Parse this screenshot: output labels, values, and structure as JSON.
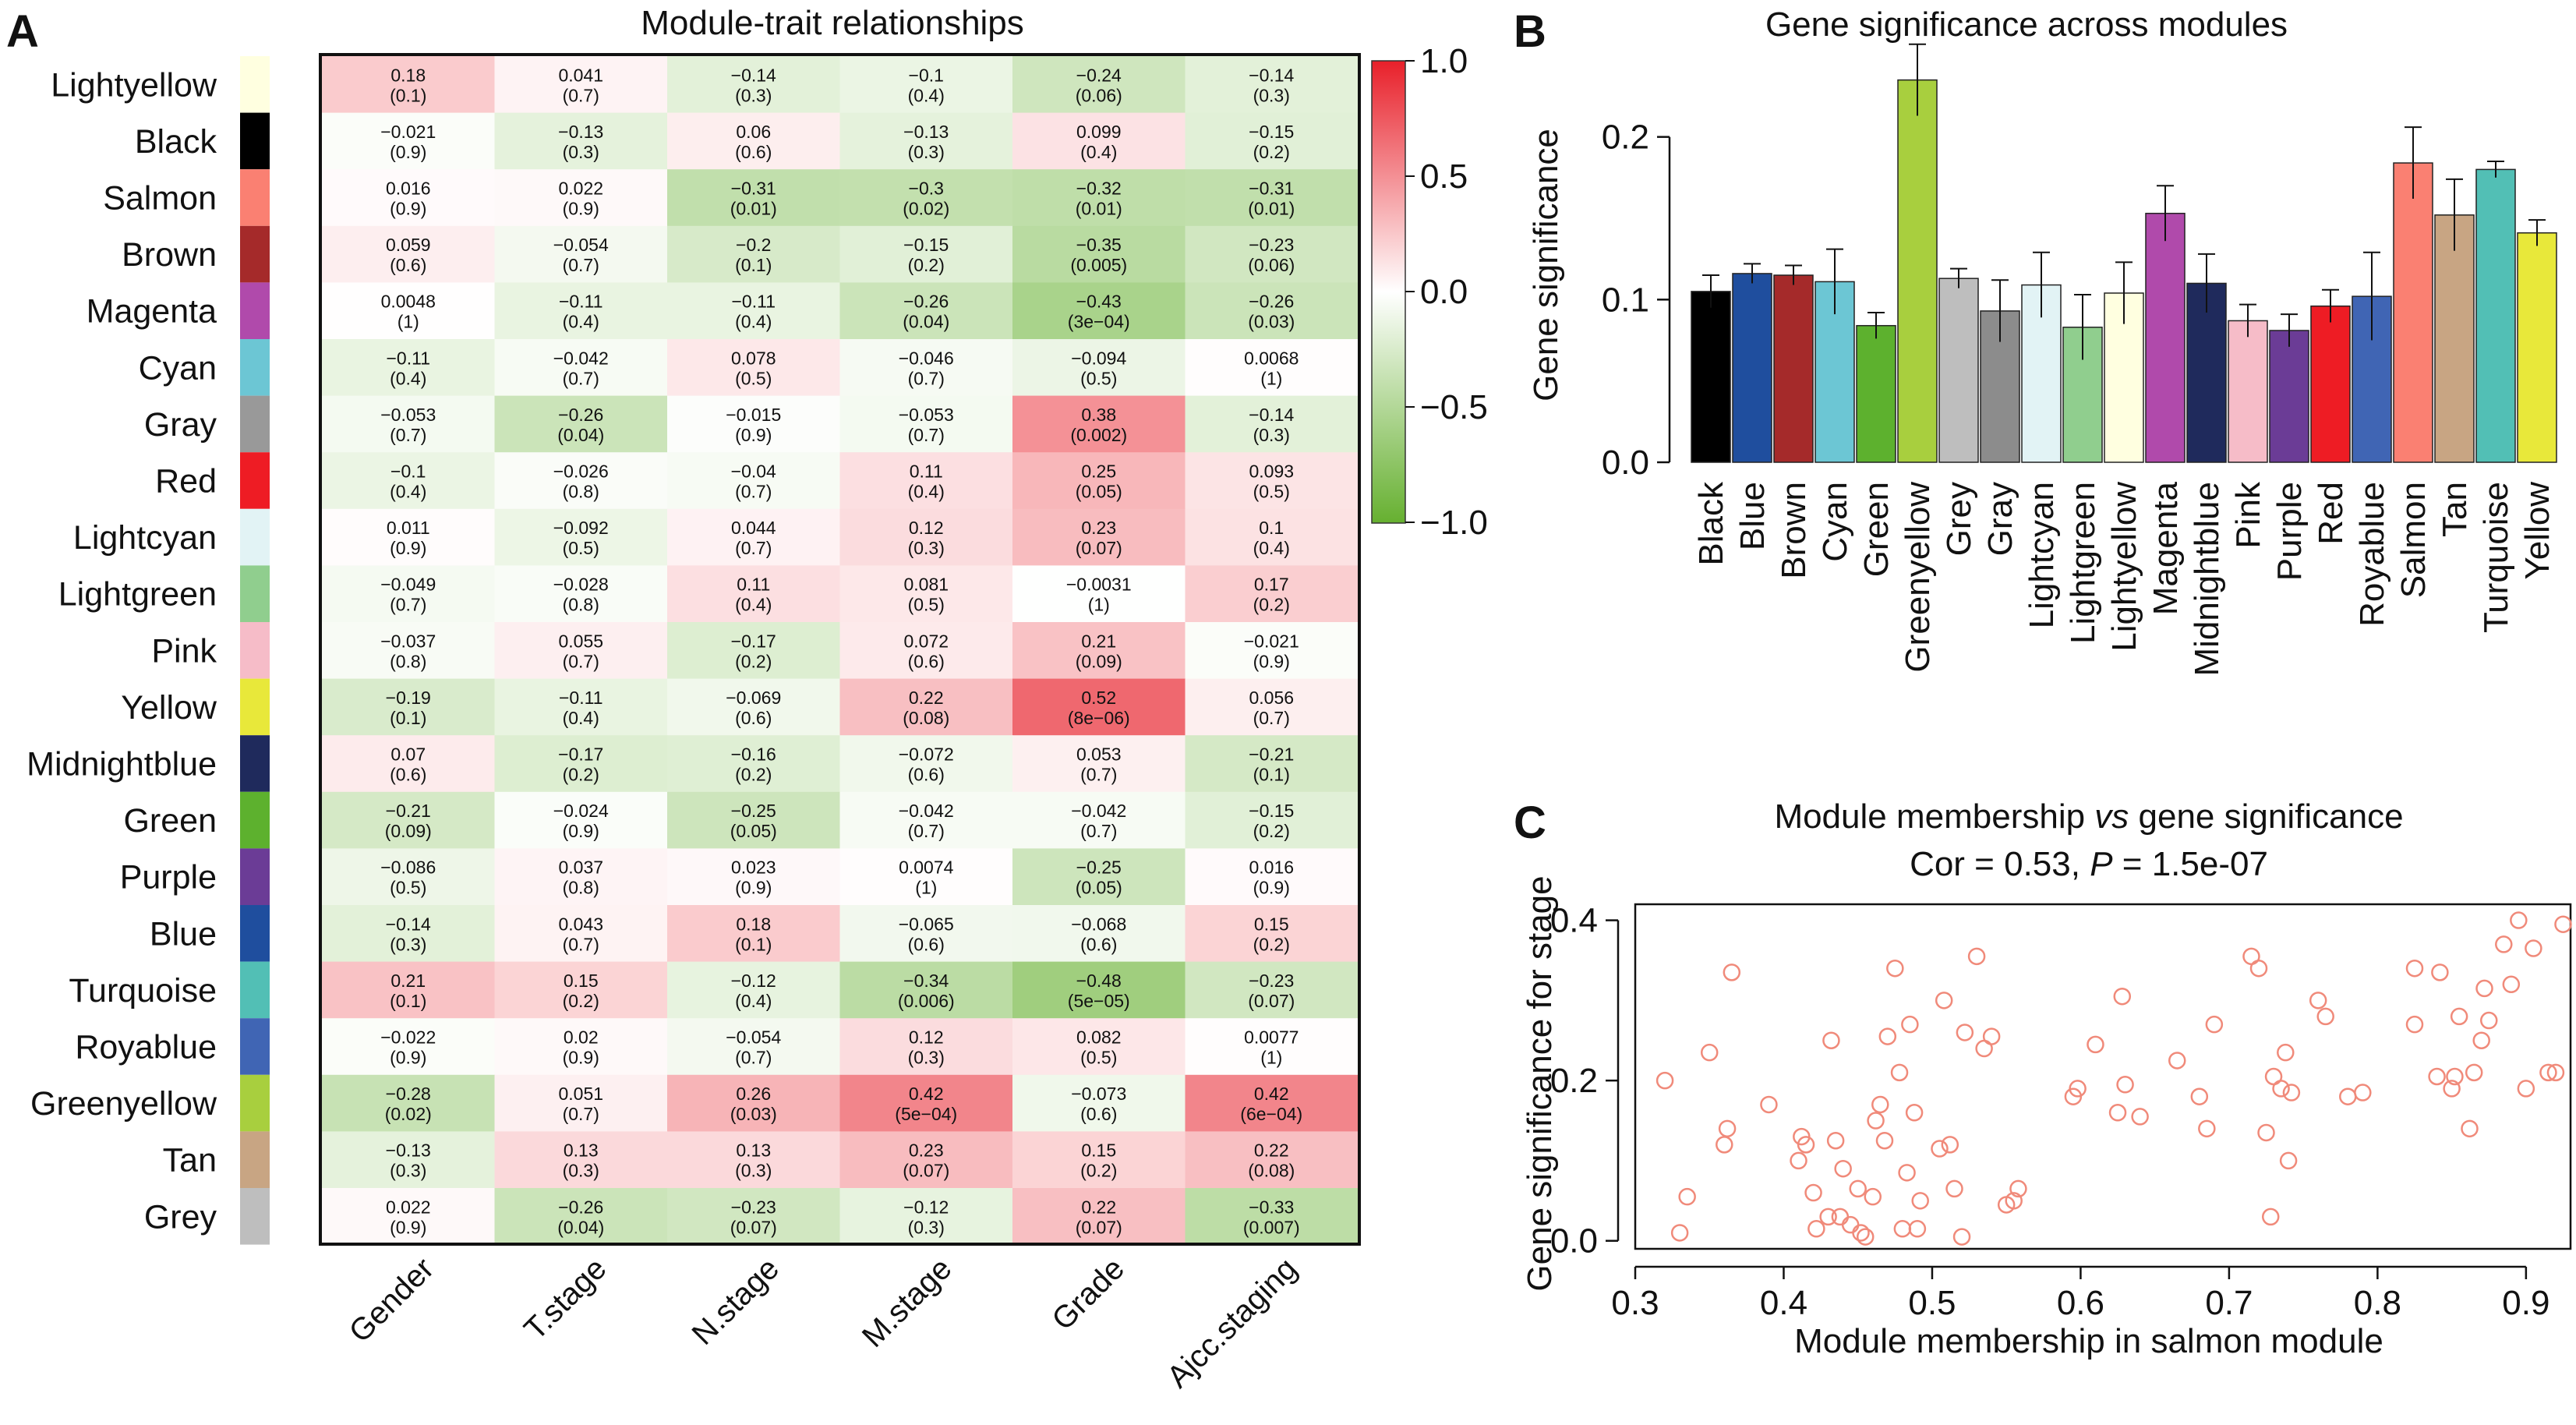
{
  "panels": {
    "a": "A",
    "b": "B",
    "c": "C"
  },
  "chart_data": [
    {
      "type": "heatmap",
      "title": "Module-trait relationships",
      "columns": [
        "Gender",
        "T.stage",
        "N.stage",
        "M.stage",
        "Grade",
        "Ajcc.staging"
      ],
      "rows": [
        {
          "name": "Lightyellow",
          "color": "#FFFFE0",
          "cells": [
            [
              "0.18",
              "(0.1)"
            ],
            [
              "0.041",
              "(0.7)"
            ],
            [
              "−0.14",
              "(0.3)"
            ],
            [
              "−0.1",
              "(0.4)"
            ],
            [
              "−0.24",
              "(0.06)"
            ],
            [
              "−0.14",
              "(0.3)"
            ]
          ]
        },
        {
          "name": "Black",
          "color": "#000000",
          "cells": [
            [
              "−0.021",
              "(0.9)"
            ],
            [
              "−0.13",
              "(0.3)"
            ],
            [
              "0.06",
              "(0.6)"
            ],
            [
              "−0.13",
              "(0.3)"
            ],
            [
              "0.099",
              "(0.4)"
            ],
            [
              "−0.15",
              "(0.2)"
            ]
          ]
        },
        {
          "name": "Salmon",
          "color": "#FA8072",
          "cells": [
            [
              "0.016",
              "(0.9)"
            ],
            [
              "0.022",
              "(0.9)"
            ],
            [
              "−0.31",
              "(0.01)"
            ],
            [
              "−0.3",
              "(0.02)"
            ],
            [
              "−0.32",
              "(0.01)"
            ],
            [
              "−0.31",
              "(0.01)"
            ]
          ]
        },
        {
          "name": "Brown",
          "color": "#A52A2A",
          "cells": [
            [
              "0.059",
              "(0.6)"
            ],
            [
              "−0.054",
              "(0.7)"
            ],
            [
              "−0.2",
              "(0.1)"
            ],
            [
              "−0.15",
              "(0.2)"
            ],
            [
              "−0.35",
              "(0.005)"
            ],
            [
              "−0.23",
              "(0.06)"
            ]
          ]
        },
        {
          "name": "Magenta",
          "color": "#B04AAB",
          "cells": [
            [
              "0.0048",
              "(1)"
            ],
            [
              "−0.11",
              "(0.4)"
            ],
            [
              "−0.11",
              "(0.4)"
            ],
            [
              "−0.26",
              "(0.04)"
            ],
            [
              "−0.43",
              "(3e−04)"
            ],
            [
              "−0.26",
              "(0.03)"
            ]
          ]
        },
        {
          "name": "Cyan",
          "color": "#6CC6D4",
          "cells": [
            [
              "−0.11",
              "(0.4)"
            ],
            [
              "−0.042",
              "(0.7)"
            ],
            [
              "0.078",
              "(0.5)"
            ],
            [
              "−0.046",
              "(0.7)"
            ],
            [
              "−0.094",
              "(0.5)"
            ],
            [
              "0.0068",
              "(1)"
            ]
          ]
        },
        {
          "name": "Gray",
          "color": "#999999",
          "cells": [
            [
              "−0.053",
              "(0.7)"
            ],
            [
              "−0.26",
              "(0.04)"
            ],
            [
              "−0.015",
              "(0.9)"
            ],
            [
              "−0.053",
              "(0.7)"
            ],
            [
              "0.38",
              "(0.002)"
            ],
            [
              "−0.14",
              "(0.3)"
            ]
          ]
        },
        {
          "name": "Red",
          "color": "#EE1C24",
          "cells": [
            [
              "−0.1",
              "(0.4)"
            ],
            [
              "−0.026",
              "(0.8)"
            ],
            [
              "−0.04",
              "(0.7)"
            ],
            [
              "0.11",
              "(0.4)"
            ],
            [
              "0.25",
              "(0.05)"
            ],
            [
              "0.093",
              "(0.5)"
            ]
          ]
        },
        {
          "name": "Lightcyan",
          "color": "#E2F3F5",
          "cells": [
            [
              "0.011",
              "(0.9)"
            ],
            [
              "−0.092",
              "(0.5)"
            ],
            [
              "0.044",
              "(0.7)"
            ],
            [
              "0.12",
              "(0.3)"
            ],
            [
              "0.23",
              "(0.07)"
            ],
            [
              "0.1",
              "(0.4)"
            ]
          ]
        },
        {
          "name": "Lightgreen",
          "color": "#90CE8E",
          "cells": [
            [
              "−0.049",
              "(0.7)"
            ],
            [
              "−0.028",
              "(0.8)"
            ],
            [
              "0.11",
              "(0.4)"
            ],
            [
              "0.081",
              "(0.5)"
            ],
            [
              "−0.0031",
              "(1)"
            ],
            [
              "0.17",
              "(0.2)"
            ]
          ]
        },
        {
          "name": "Pink",
          "color": "#F6BCC8",
          "cells": [
            [
              "−0.037",
              "(0.8)"
            ],
            [
              "0.055",
              "(0.7)"
            ],
            [
              "−0.17",
              "(0.2)"
            ],
            [
              "0.072",
              "(0.6)"
            ],
            [
              "0.21",
              "(0.09)"
            ],
            [
              "−0.021",
              "(0.9)"
            ]
          ]
        },
        {
          "name": "Yellow",
          "color": "#E8E83A",
          "cells": [
            [
              "−0.19",
              "(0.1)"
            ],
            [
              "−0.11",
              "(0.4)"
            ],
            [
              "−0.069",
              "(0.6)"
            ],
            [
              "0.22",
              "(0.08)"
            ],
            [
              "0.52",
              "(8e−06)"
            ],
            [
              "0.056",
              "(0.7)"
            ]
          ]
        },
        {
          "name": "Midnightblue",
          "color": "#1F2A5C",
          "cells": [
            [
              "0.07",
              "(0.6)"
            ],
            [
              "−0.17",
              "(0.2)"
            ],
            [
              "−0.16",
              "(0.2)"
            ],
            [
              "−0.072",
              "(0.6)"
            ],
            [
              "0.053",
              "(0.7)"
            ],
            [
              "−0.21",
              "(0.1)"
            ]
          ]
        },
        {
          "name": "Green",
          "color": "#5DB12E",
          "cells": [
            [
              "−0.21",
              "(0.09)"
            ],
            [
              "−0.024",
              "(0.9)"
            ],
            [
              "−0.25",
              "(0.05)"
            ],
            [
              "−0.042",
              "(0.7)"
            ],
            [
              "−0.042",
              "(0.7)"
            ],
            [
              "−0.15",
              "(0.2)"
            ]
          ]
        },
        {
          "name": "Purple",
          "color": "#6B3C96",
          "cells": [
            [
              "−0.086",
              "(0.5)"
            ],
            [
              "0.037",
              "(0.8)"
            ],
            [
              "0.023",
              "(0.9)"
            ],
            [
              "0.0074",
              "(1)"
            ],
            [
              "−0.25",
              "(0.05)"
            ],
            [
              "0.016",
              "(0.9)"
            ]
          ]
        },
        {
          "name": "Blue",
          "color": "#1F4E9E",
          "cells": [
            [
              "−0.14",
              "(0.3)"
            ],
            [
              "0.043",
              "(0.7)"
            ],
            [
              "0.18",
              "(0.1)"
            ],
            [
              "−0.065",
              "(0.6)"
            ],
            [
              "−0.068",
              "(0.6)"
            ],
            [
              "0.15",
              "(0.2)"
            ]
          ]
        },
        {
          "name": "Turquoise",
          "color": "#52BFB5",
          "cells": [
            [
              "0.21",
              "(0.1)"
            ],
            [
              "0.15",
              "(0.2)"
            ],
            [
              "−0.12",
              "(0.4)"
            ],
            [
              "−0.34",
              "(0.006)"
            ],
            [
              "−0.48",
              "(5e−05)"
            ],
            [
              "−0.23",
              "(0.07)"
            ]
          ]
        },
        {
          "name": "Royablue",
          "color": "#4065B4",
          "cells": [
            [
              "−0.022",
              "(0.9)"
            ],
            [
              "0.02",
              "(0.9)"
            ],
            [
              "−0.054",
              "(0.7)"
            ],
            [
              "0.12",
              "(0.3)"
            ],
            [
              "0.082",
              "(0.5)"
            ],
            [
              "0.0077",
              "(1)"
            ]
          ]
        },
        {
          "name": "Greenyellow",
          "color": "#A8CF3E",
          "cells": [
            [
              "−0.28",
              "(0.02)"
            ],
            [
              "0.051",
              "(0.7)"
            ],
            [
              "0.26",
              "(0.03)"
            ],
            [
              "0.42",
              "(5e−04)"
            ],
            [
              "−0.073",
              "(0.6)"
            ],
            [
              "0.42",
              "(6e−04)"
            ]
          ]
        },
        {
          "name": "Tan",
          "color": "#C8A583",
          "cells": [
            [
              "−0.13",
              "(0.3)"
            ],
            [
              "0.13",
              "(0.3)"
            ],
            [
              "0.13",
              "(0.3)"
            ],
            [
              "0.23",
              "(0.07)"
            ],
            [
              "0.15",
              "(0.2)"
            ],
            [
              "0.22",
              "(0.08)"
            ]
          ]
        },
        {
          "name": "Grey",
          "color": "#BEBEBE",
          "cells": [
            [
              "0.022",
              "(0.9)"
            ],
            [
              "−0.26",
              "(0.04)"
            ],
            [
              "−0.23",
              "(0.07)"
            ],
            [
              "−0.12",
              "(0.3)"
            ],
            [
              "0.22",
              "(0.07)"
            ],
            [
              "−0.33",
              "(0.007)"
            ]
          ]
        }
      ],
      "colorbar": {
        "ticks": [
          "1.0",
          "0.5",
          "0.0",
          "−0.5",
          "−1.0"
        ],
        "range": [
          -1,
          1
        ],
        "colors": {
          "high": "#E8202A",
          "mid": "#FFFFFF",
          "low": "#66B030"
        }
      }
    },
    {
      "type": "bar",
      "title": "Gene significance across modules",
      "ylabel": "Gene significance",
      "ylim": [
        0,
        0.265
      ],
      "yticks": [
        "0.0",
        "0.1",
        "0.2"
      ],
      "categories": [
        "Black",
        "Blue",
        "Brown",
        "Cyan",
        "Green",
        "Greenyellow",
        "Grey",
        "Gray",
        "Lightcyan",
        "Lightgreen",
        "Lightyellow",
        "Magenta",
        "Midnightblue",
        "Pink",
        "Purple",
        "Red",
        "Royablue",
        "Salmon",
        "Tan",
        "Turquoise",
        "Yellow"
      ],
      "values": [
        0.105,
        0.116,
        0.115,
        0.111,
        0.084,
        0.235,
        0.113,
        0.093,
        0.109,
        0.083,
        0.104,
        0.153,
        0.11,
        0.087,
        0.081,
        0.096,
        0.102,
        0.184,
        0.152,
        0.18,
        0.141
      ],
      "errors": [
        0.01,
        0.006,
        0.006,
        0.02,
        0.008,
        0.022,
        0.006,
        0.019,
        0.02,
        0.02,
        0.019,
        0.017,
        0.018,
        0.01,
        0.01,
        0.01,
        0.027,
        0.022,
        0.022,
        0.005,
        0.008
      ],
      "colors": [
        "#000000",
        "#1F4E9E",
        "#A52A2A",
        "#6CC6D4",
        "#5DB12E",
        "#A8CF3E",
        "#BEBEBE",
        "#8C8C8C",
        "#E2F3F5",
        "#90CE8E",
        "#FFFFE0",
        "#B04AAB",
        "#1F2A5C",
        "#F6BCC8",
        "#6B3C96",
        "#EE1C24",
        "#4065B4",
        "#FA8072",
        "#C8A583",
        "#52BFB5",
        "#E8E83A"
      ]
    },
    {
      "type": "scatter",
      "title_prefix": "Module membership ",
      "title_italic": "vs",
      "title_suffix": " gene significance",
      "subtitle_prefix": "Cor = 0.53, ",
      "subtitle_italic": "P",
      "subtitle_suffix": " = 1.5e-07",
      "xlabel": "Module membership in salmon module",
      "ylabel": "Gene significance for stage",
      "xlim": [
        0.3,
        0.93
      ],
      "ylim": [
        -0.01,
        0.42
      ],
      "xticks": [
        "0.3",
        "0.4",
        "0.5",
        "0.6",
        "0.7",
        "0.8",
        "0.9"
      ],
      "yticks": [
        "0.0",
        "0.2",
        "0.4"
      ],
      "point_color": "#F08A7A",
      "points": [
        [
          0.32,
          0.2
        ],
        [
          0.33,
          0.01
        ],
        [
          0.335,
          0.055
        ],
        [
          0.35,
          0.235
        ],
        [
          0.36,
          0.12
        ],
        [
          0.362,
          0.14
        ],
        [
          0.365,
          0.335
        ],
        [
          0.39,
          0.17
        ],
        [
          0.41,
          0.1
        ],
        [
          0.412,
          0.13
        ],
        [
          0.415,
          0.12
        ],
        [
          0.42,
          0.06
        ],
        [
          0.422,
          0.015
        ],
        [
          0.43,
          0.03
        ],
        [
          0.432,
          0.25
        ],
        [
          0.435,
          0.125
        ],
        [
          0.438,
          0.03
        ],
        [
          0.44,
          0.09
        ],
        [
          0.445,
          0.02
        ],
        [
          0.45,
          0.065
        ],
        [
          0.452,
          0.01
        ],
        [
          0.455,
          0.005
        ],
        [
          0.46,
          0.055
        ],
        [
          0.462,
          0.15
        ],
        [
          0.465,
          0.17
        ],
        [
          0.468,
          0.125
        ],
        [
          0.47,
          0.255
        ],
        [
          0.475,
          0.34
        ],
        [
          0.478,
          0.21
        ],
        [
          0.48,
          0.015
        ],
        [
          0.483,
          0.085
        ],
        [
          0.485,
          0.27
        ],
        [
          0.488,
          0.16
        ],
        [
          0.49,
          0.015
        ],
        [
          0.492,
          0.05
        ],
        [
          0.505,
          0.115
        ],
        [
          0.508,
          0.3
        ],
        [
          0.512,
          0.12
        ],
        [
          0.515,
          0.065
        ],
        [
          0.52,
          0.005
        ],
        [
          0.522,
          0.26
        ],
        [
          0.53,
          0.355
        ],
        [
          0.535,
          0.24
        ],
        [
          0.54,
          0.255
        ],
        [
          0.55,
          0.045
        ],
        [
          0.555,
          0.05
        ],
        [
          0.558,
          0.065
        ],
        [
          0.595,
          0.18
        ],
        [
          0.598,
          0.19
        ],
        [
          0.61,
          0.245
        ],
        [
          0.625,
          0.16
        ],
        [
          0.628,
          0.305
        ],
        [
          0.63,
          0.195
        ],
        [
          0.64,
          0.155
        ],
        [
          0.665,
          0.225
        ],
        [
          0.68,
          0.18
        ],
        [
          0.685,
          0.14
        ],
        [
          0.69,
          0.27
        ],
        [
          0.715,
          0.355
        ],
        [
          0.72,
          0.34
        ],
        [
          0.725,
          0.135
        ],
        [
          0.728,
          0.03
        ],
        [
          0.73,
          0.205
        ],
        [
          0.735,
          0.19
        ],
        [
          0.738,
          0.235
        ],
        [
          0.74,
          0.1
        ],
        [
          0.742,
          0.185
        ],
        [
          0.76,
          0.3
        ],
        [
          0.765,
          0.28
        ],
        [
          0.78,
          0.18
        ],
        [
          0.79,
          0.185
        ],
        [
          0.825,
          0.34
        ],
        [
          0.825,
          0.27
        ],
        [
          0.84,
          0.205
        ],
        [
          0.842,
          0.335
        ],
        [
          0.85,
          0.19
        ],
        [
          0.852,
          0.205
        ],
        [
          0.855,
          0.28
        ],
        [
          0.862,
          0.14
        ],
        [
          0.865,
          0.21
        ],
        [
          0.87,
          0.25
        ],
        [
          0.872,
          0.315
        ],
        [
          0.875,
          0.275
        ],
        [
          0.885,
          0.37
        ],
        [
          0.89,
          0.32
        ],
        [
          0.895,
          0.4
        ],
        [
          0.9,
          0.19
        ],
        [
          0.905,
          0.365
        ],
        [
          0.915,
          0.21
        ],
        [
          0.92,
          0.21
        ],
        [
          0.925,
          0.395
        ]
      ]
    }
  ]
}
